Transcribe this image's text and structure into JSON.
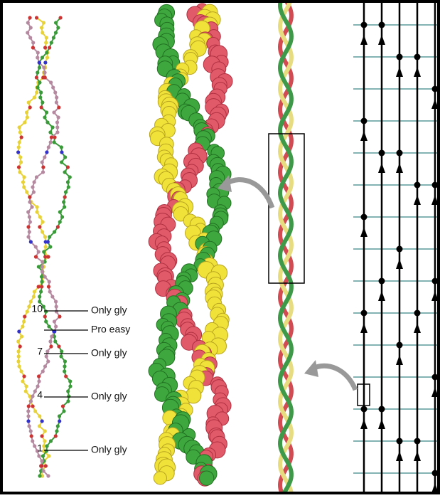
{
  "annotations": [
    {
      "residue": "10",
      "label": "Only gly"
    },
    {
      "label": "Pro easy"
    },
    {
      "residue": "7",
      "label": "Only gly"
    },
    {
      "residue": "4",
      "label": "Only gly"
    },
    {
      "residue": "1",
      "label": "Only gly"
    }
  ]
}
